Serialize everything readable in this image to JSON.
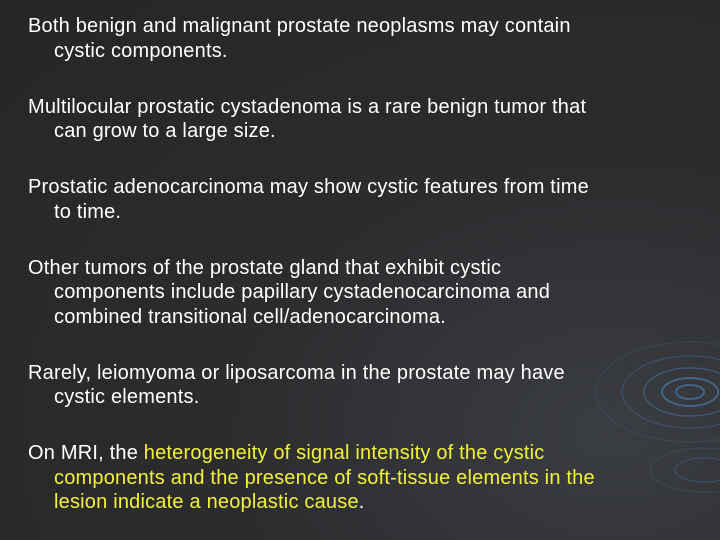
{
  "paragraphs": [
    {
      "lines": [
        "Both benign and malignant prostate neoplasms may contain",
        "cystic components."
      ]
    },
    {
      "lines": [
        "Multilocular prostatic cystadenoma is a rare benign tumor that",
        "can grow to a large size."
      ]
    },
    {
      "lines": [
        "Prostatic adenocarcinoma may show cystic features from time",
        "to time."
      ]
    },
    {
      "lines": [
        "Other tumors of the prostate gland that exhibit cystic",
        "components include papillary cystadenocarcinoma and",
        "combined transitional cell/adenocarcinoma."
      ]
    },
    {
      "lines": [
        "Rarely, leiomyoma or liposarcoma in the prostate may have",
        "cystic elements."
      ]
    },
    {
      "lines": [
        [
          {
            "text": "On MRI, the ",
            "color": "#ffffff"
          },
          {
            "text": "heterogeneity of signal intensity of the cystic",
            "color": "#f2f23a"
          }
        ],
        [
          {
            "text": "components and the presence of soft-tissue elements in the",
            "color": "#f2f23a"
          }
        ],
        [
          {
            "text": "lesion indicate a neoplastic cause",
            "color": "#f2f23a"
          },
          {
            "text": ".",
            "color": "#ffffff"
          }
        ]
      ]
    }
  ]
}
